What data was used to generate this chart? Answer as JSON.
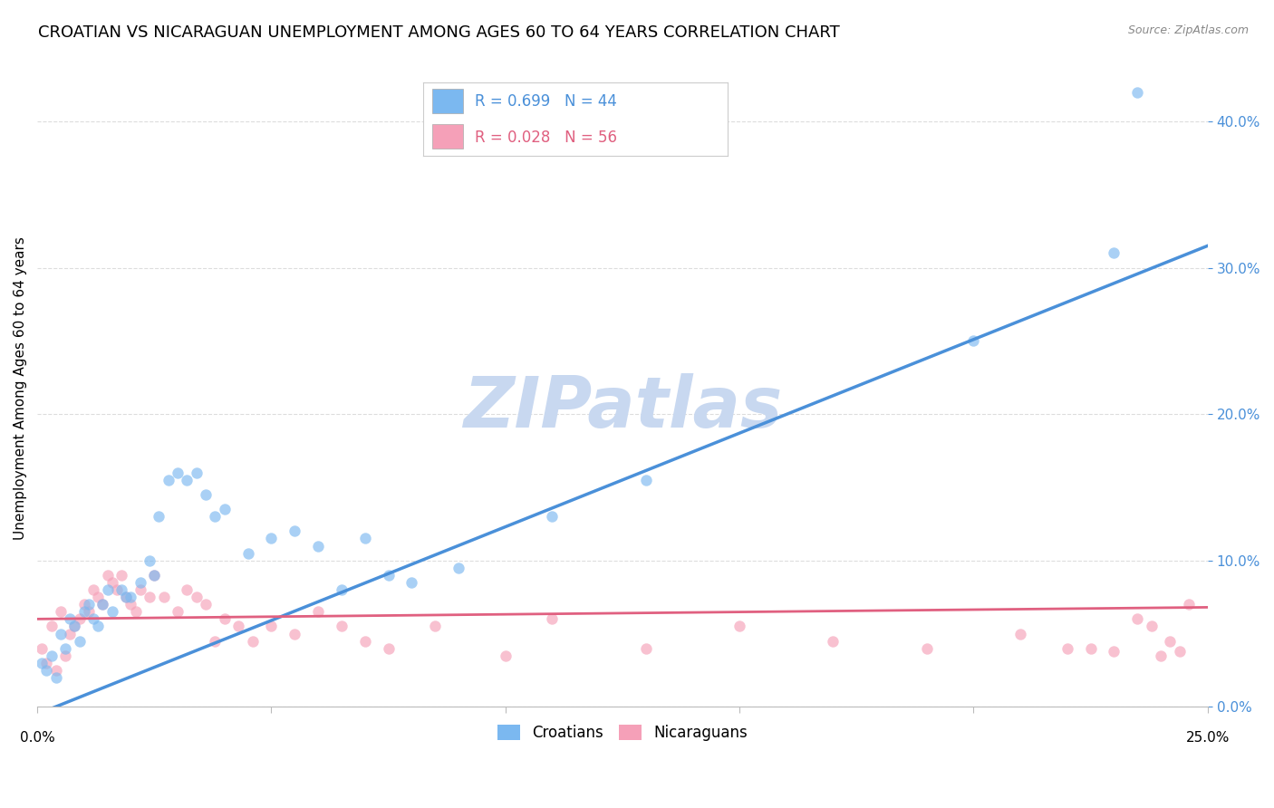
{
  "title": "CROATIAN VS NICARAGUAN UNEMPLOYMENT AMONG AGES 60 TO 64 YEARS CORRELATION CHART",
  "source": "Source: ZipAtlas.com",
  "ylabel": "Unemployment Among Ages 60 to 64 years",
  "xlim": [
    0.0,
    0.25
  ],
  "ylim": [
    0.0,
    0.435
  ],
  "yticks": [
    0.0,
    0.1,
    0.2,
    0.3,
    0.4
  ],
  "ytick_labels": [
    "0.0%",
    "10.0%",
    "20.0%",
    "30.0%",
    "40.0%"
  ],
  "croatian_color": "#7bb8f0",
  "nicaraguan_color": "#f5a0b8",
  "trendline_croatian_color": "#4a90d9",
  "trendline_nicaraguan_color": "#e06080",
  "background_color": "#ffffff",
  "grid_color": "#dddddd",
  "watermark_text": "ZIPatlas",
  "watermark_color": "#c8d8f0",
  "title_fontsize": 13,
  "axis_label_fontsize": 11,
  "tick_fontsize": 11,
  "scatter_size": 80,
  "scatter_alpha": 0.65,
  "croatian_x": [
    0.001,
    0.002,
    0.003,
    0.004,
    0.005,
    0.006,
    0.007,
    0.008,
    0.009,
    0.01,
    0.011,
    0.012,
    0.013,
    0.014,
    0.015,
    0.016,
    0.018,
    0.019,
    0.02,
    0.022,
    0.024,
    0.025,
    0.026,
    0.028,
    0.03,
    0.032,
    0.034,
    0.036,
    0.038,
    0.04,
    0.045,
    0.05,
    0.055,
    0.06,
    0.065,
    0.07,
    0.075,
    0.08,
    0.09,
    0.11,
    0.13,
    0.2,
    0.23,
    0.235
  ],
  "croatian_y": [
    0.03,
    0.025,
    0.035,
    0.02,
    0.05,
    0.04,
    0.06,
    0.055,
    0.045,
    0.065,
    0.07,
    0.06,
    0.055,
    0.07,
    0.08,
    0.065,
    0.08,
    0.075,
    0.075,
    0.085,
    0.1,
    0.09,
    0.13,
    0.155,
    0.16,
    0.155,
    0.16,
    0.145,
    0.13,
    0.135,
    0.105,
    0.115,
    0.12,
    0.11,
    0.08,
    0.115,
    0.09,
    0.085,
    0.095,
    0.13,
    0.155,
    0.25,
    0.31,
    0.42
  ],
  "nicaraguan_x": [
    0.001,
    0.002,
    0.003,
    0.004,
    0.005,
    0.006,
    0.007,
    0.008,
    0.009,
    0.01,
    0.011,
    0.012,
    0.013,
    0.014,
    0.015,
    0.016,
    0.017,
    0.018,
    0.019,
    0.02,
    0.021,
    0.022,
    0.024,
    0.025,
    0.027,
    0.03,
    0.032,
    0.034,
    0.036,
    0.038,
    0.04,
    0.043,
    0.046,
    0.05,
    0.055,
    0.06,
    0.065,
    0.07,
    0.075,
    0.085,
    0.1,
    0.11,
    0.13,
    0.15,
    0.17,
    0.19,
    0.21,
    0.22,
    0.225,
    0.23,
    0.235,
    0.238,
    0.24,
    0.242,
    0.244,
    0.246
  ],
  "nicaraguan_y": [
    0.04,
    0.03,
    0.055,
    0.025,
    0.065,
    0.035,
    0.05,
    0.055,
    0.06,
    0.07,
    0.065,
    0.08,
    0.075,
    0.07,
    0.09,
    0.085,
    0.08,
    0.09,
    0.075,
    0.07,
    0.065,
    0.08,
    0.075,
    0.09,
    0.075,
    0.065,
    0.08,
    0.075,
    0.07,
    0.045,
    0.06,
    0.055,
    0.045,
    0.055,
    0.05,
    0.065,
    0.055,
    0.045,
    0.04,
    0.055,
    0.035,
    0.06,
    0.04,
    0.055,
    0.045,
    0.04,
    0.05,
    0.04,
    0.04,
    0.038,
    0.06,
    0.055,
    0.035,
    0.045,
    0.038,
    0.07
  ],
  "croatian_trend_x": [
    0.0,
    0.25
  ],
  "croatian_trend_y": [
    -0.005,
    0.315
  ],
  "nicaraguan_trend_x": [
    0.0,
    0.25
  ],
  "nicaraguan_trend_y": [
    0.06,
    0.068
  ]
}
